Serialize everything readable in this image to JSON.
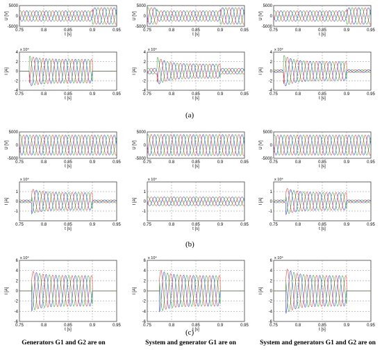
{
  "captions": [
    "(a)",
    "(b)",
    "(c)"
  ],
  "column_titles": [
    "Generators G1 and G2 are on",
    "System and generator G1 are on",
    "System and generators G1 and G2 are on"
  ],
  "series_colors": {
    "phase_a": "#2b35d9",
    "phase_b": "#d93b2b",
    "phase_c": "#2e9e3a"
  },
  "grid_color": "#888888",
  "chart_data": [
    {
      "id": "a-voltage-1",
      "type": "line",
      "row": 0,
      "col": 0,
      "kind": "voltage",
      "xlabel": "t [s]",
      "ylabel": "U [V]",
      "y_exponent": "",
      "xlim": [
        0.75,
        0.95
      ],
      "ylim": [
        -5000,
        5000
      ],
      "xticks": [
        "0.75",
        "0.8",
        "0.85",
        "0.9",
        "0.95"
      ],
      "yticks": [
        "5000",
        "0",
        "-5000"
      ],
      "ytick_values": [
        5000,
        0,
        -5000
      ],
      "segments": [
        {
          "t0": 0.75,
          "t1": 0.9,
          "amplitude": 2500
        },
        {
          "t0": 0.9,
          "t1": 0.95,
          "amplitude": 4000
        }
      ]
    },
    {
      "id": "a-current-1",
      "type": "line",
      "row": 1,
      "col": 0,
      "kind": "current",
      "xlabel": "t [s]",
      "ylabel": "I [A]",
      "y_exponent": "x 10⁴",
      "xlim": [
        0.75,
        0.95
      ],
      "ylim": [
        -4,
        4
      ],
      "xticks": [
        "0.75",
        "0.8",
        "0.85",
        "0.9",
        "0.95"
      ],
      "yticks": [
        "4",
        "2",
        "0",
        "-2",
        "-4"
      ],
      "ytick_values": [
        4,
        2,
        0,
        -2,
        -4
      ],
      "segments": [
        {
          "t0": 0.75,
          "t1": 0.77,
          "amplitude": 0
        },
        {
          "t0": 0.77,
          "t1": 0.9,
          "amplitude": 2.5,
          "peak": 3.2,
          "decay": 0.02
        },
        {
          "t0": 0.9,
          "t1": 0.95,
          "amplitude": 0
        }
      ]
    },
    {
      "id": "a-voltage-2",
      "type": "line",
      "row": 0,
      "col": 1,
      "kind": "voltage",
      "xlabel": "t [s]",
      "ylabel": "U [V]",
      "y_exponent": "",
      "xlim": [
        0.75,
        0.95
      ],
      "ylim": [
        -5000,
        5000
      ],
      "xticks": [
        "0.75",
        "0.8",
        "0.85",
        "0.9",
        "0.95"
      ],
      "yticks": [
        "5000",
        "0",
        "-5000"
      ],
      "ytick_values": [
        5000,
        0,
        -5000
      ],
      "segments": [
        {
          "t0": 0.75,
          "t1": 0.77,
          "amplitude": 4000
        },
        {
          "t0": 0.77,
          "t1": 0.9,
          "amplitude": 2500
        },
        {
          "t0": 0.9,
          "t1": 0.95,
          "amplitude": 4000
        }
      ]
    },
    {
      "id": "a-current-2",
      "type": "line",
      "row": 1,
      "col": 1,
      "kind": "current",
      "xlabel": "t [s]",
      "ylabel": "I [A]",
      "y_exponent": "x 10⁴",
      "xlim": [
        0.75,
        0.95
      ],
      "ylim": [
        -4,
        4
      ],
      "xticks": [
        "0.75",
        "0.8",
        "0.85",
        "0.9",
        "0.95"
      ],
      "yticks": [
        "4",
        "2",
        "0",
        "-2",
        "-4"
      ],
      "ytick_values": [
        4,
        2,
        0,
        -2,
        -4
      ],
      "segments": [
        {
          "t0": 0.75,
          "t1": 0.77,
          "amplitude": 0.6
        },
        {
          "t0": 0.77,
          "t1": 0.9,
          "amplitude": 1.5,
          "peak": 3.0,
          "decay": 0.02
        },
        {
          "t0": 0.9,
          "t1": 0.95,
          "amplitude": 0.6
        }
      ]
    },
    {
      "id": "a-voltage-3",
      "type": "line",
      "row": 0,
      "col": 2,
      "kind": "voltage",
      "xlabel": "t [s]",
      "ylabel": "U [V]",
      "y_exponent": "",
      "xlim": [
        0.75,
        0.95
      ],
      "ylim": [
        -5000,
        5000
      ],
      "xticks": [
        "0.75",
        "0.8",
        "0.85",
        "0.9",
        "0.95"
      ],
      "yticks": [
        "5000",
        "0",
        "-5000"
      ],
      "ytick_values": [
        5000,
        0,
        -5000
      ],
      "segments": [
        {
          "t0": 0.75,
          "t1": 0.9,
          "amplitude": 2500
        },
        {
          "t0": 0.9,
          "t1": 0.95,
          "amplitude": 4000
        }
      ]
    },
    {
      "id": "a-current-3",
      "type": "line",
      "row": 1,
      "col": 2,
      "kind": "current",
      "xlabel": "t [s]",
      "ylabel": "I [A]",
      "y_exponent": "x 10⁴",
      "xlim": [
        0.75,
        0.95
      ],
      "ylim": [
        -4,
        4
      ],
      "xticks": [
        "0.75",
        "0.8",
        "0.85",
        "0.9",
        "0.95"
      ],
      "yticks": [
        "4",
        "2",
        "0",
        "-2",
        "-4"
      ],
      "ytick_values": [
        4,
        2,
        0,
        -2,
        -4
      ],
      "segments": [
        {
          "t0": 0.75,
          "t1": 0.77,
          "amplitude": 0.3
        },
        {
          "t0": 0.77,
          "t1": 0.9,
          "amplitude": 2.0,
          "peak": 3.4,
          "decay": 0.02
        },
        {
          "t0": 0.9,
          "t1": 0.95,
          "amplitude": 0.3
        }
      ]
    },
    {
      "id": "b-voltage-1",
      "type": "line",
      "row": 2,
      "col": 0,
      "kind": "voltage",
      "xlabel": "t [s]",
      "ylabel": "U [V]",
      "y_exponent": "",
      "xlim": [
        0.75,
        0.95
      ],
      "ylim": [
        -5000,
        5000
      ],
      "xticks": [
        "0.75",
        "0.8",
        "0.85",
        "0.9",
        "0.95"
      ],
      "yticks": [
        "5000",
        "0",
        "-5000"
      ],
      "ytick_values": [
        5000,
        0,
        -5000
      ],
      "segments": [
        {
          "t0": 0.75,
          "t1": 0.95,
          "amplitude": 3800
        }
      ]
    },
    {
      "id": "b-current-1",
      "type": "line",
      "row": 3,
      "col": 0,
      "kind": "current",
      "xlabel": "t [s]",
      "ylabel": "I [A]",
      "y_exponent": "x 10⁴",
      "xlim": [
        0.75,
        0.95
      ],
      "ylim": [
        -2,
        2
      ],
      "xticks": [
        "0.75",
        "0.8",
        "0.85",
        "0.9",
        "0.95"
      ],
      "yticks": [
        "1",
        "0",
        "-1"
      ],
      "ytick_values": [
        1,
        0,
        -1
      ],
      "segments": [
        {
          "t0": 0.75,
          "t1": 0.775,
          "amplitude": 0.15
        },
        {
          "t0": 0.775,
          "t1": 0.9,
          "amplitude": 0.9,
          "peak": 1.3,
          "decay": 0.02
        },
        {
          "t0": 0.9,
          "t1": 0.95,
          "amplitude": 0.15
        }
      ]
    },
    {
      "id": "b-voltage-2",
      "type": "line",
      "row": 2,
      "col": 1,
      "kind": "voltage",
      "xlabel": "t [s]",
      "ylabel": "U [V]",
      "y_exponent": "",
      "xlim": [
        0.75,
        0.95
      ],
      "ylim": [
        -5000,
        5000
      ],
      "xticks": [
        "0.75",
        "0.8",
        "0.85",
        "0.9",
        "0.95"
      ],
      "yticks": [
        "5000",
        "0",
        "-5000"
      ],
      "ytick_values": [
        5000,
        0,
        -5000
      ],
      "segments": [
        {
          "t0": 0.75,
          "t1": 0.95,
          "amplitude": 4000
        }
      ]
    },
    {
      "id": "b-current-2",
      "type": "line",
      "row": 3,
      "col": 1,
      "kind": "current",
      "xlabel": "t [s]",
      "ylabel": "I [A]",
      "y_exponent": "x 10⁴",
      "xlim": [
        0.75,
        0.95
      ],
      "ylim": [
        -2,
        2
      ],
      "xticks": [
        "0.75",
        "0.8",
        "0.85",
        "0.9",
        "0.95"
      ],
      "yticks": [
        "1",
        "0",
        "-1"
      ],
      "ytick_values": [
        1,
        0,
        -1
      ],
      "segments": [
        {
          "t0": 0.75,
          "t1": 0.95,
          "amplitude": 0.45
        }
      ]
    },
    {
      "id": "b-voltage-3",
      "type": "line",
      "row": 2,
      "col": 2,
      "kind": "voltage",
      "xlabel": "t [s]",
      "ylabel": "U [V]",
      "y_exponent": "",
      "xlim": [
        0.75,
        0.95
      ],
      "ylim": [
        -5000,
        5000
      ],
      "xticks": [
        "0.75",
        "0.8",
        "0.85",
        "0.9",
        "0.95"
      ],
      "yticks": [
        "5000",
        "0",
        "-5000"
      ],
      "ytick_values": [
        5000,
        0,
        -5000
      ],
      "segments": [
        {
          "t0": 0.75,
          "t1": 0.95,
          "amplitude": 3800
        }
      ]
    },
    {
      "id": "b-current-3",
      "type": "line",
      "row": 3,
      "col": 2,
      "kind": "current",
      "xlabel": "t [s]",
      "ylabel": "I [A]",
      "y_exponent": "x 10⁴",
      "xlim": [
        0.75,
        0.95
      ],
      "ylim": [
        -2,
        2
      ],
      "xticks": [
        "0.75",
        "0.8",
        "0.85",
        "0.9",
        "0.95"
      ],
      "yticks": [
        "1",
        "0",
        "-1"
      ],
      "ytick_values": [
        1,
        0,
        -1
      ],
      "segments": [
        {
          "t0": 0.75,
          "t1": 0.775,
          "amplitude": 0.15
        },
        {
          "t0": 0.775,
          "t1": 0.9,
          "amplitude": 0.9,
          "peak": 1.4,
          "decay": 0.02
        },
        {
          "t0": 0.9,
          "t1": 0.95,
          "amplitude": 0.15
        }
      ]
    },
    {
      "id": "c-current-1",
      "type": "line",
      "row": 4,
      "col": 0,
      "kind": "current",
      "xlabel": "t [s]",
      "ylabel": "I [A]",
      "y_exponent": "x 10⁴",
      "xlim": [
        0.75,
        0.95
      ],
      "ylim": [
        -6,
        6
      ],
      "xticks": [
        "0.75",
        "0.8",
        "0.85",
        "0.9",
        "0.95"
      ],
      "yticks": [
        "6",
        "4",
        "2",
        "0",
        "-2",
        "-4",
        "-6"
      ],
      "ytick_values": [
        6,
        4,
        2,
        0,
        -2,
        -4,
        -6
      ],
      "segments": [
        {
          "t0": 0.75,
          "t1": 0.775,
          "amplitude": 0
        },
        {
          "t0": 0.775,
          "t1": 0.9,
          "amplitude": 3.0,
          "peak": 4.0,
          "decay": 0.02
        },
        {
          "t0": 0.9,
          "t1": 0.95,
          "amplitude": 0
        }
      ]
    },
    {
      "id": "c-current-2",
      "type": "line",
      "row": 4,
      "col": 1,
      "kind": "current",
      "xlabel": "t [s]",
      "ylabel": "I [A]",
      "y_exponent": "x 10⁴",
      "xlim": [
        0.75,
        0.95
      ],
      "ylim": [
        -6,
        6
      ],
      "xticks": [
        "0.75",
        "0.8",
        "0.85",
        "0.9",
        "0.95"
      ],
      "yticks": [
        "6",
        "4",
        "2",
        "0",
        "-2",
        "-4",
        "-6"
      ],
      "ytick_values": [
        6,
        4,
        2,
        0,
        -2,
        -4,
        -6
      ],
      "segments": [
        {
          "t0": 0.75,
          "t1": 0.775,
          "amplitude": 0
        },
        {
          "t0": 0.775,
          "t1": 0.9,
          "amplitude": 3.0,
          "peak": 4.2,
          "decay": 0.02
        },
        {
          "t0": 0.9,
          "t1": 0.95,
          "amplitude": 0
        }
      ]
    },
    {
      "id": "c-current-3",
      "type": "line",
      "row": 4,
      "col": 2,
      "kind": "current",
      "xlabel": "t [s]",
      "ylabel": "I [A]",
      "y_exponent": "x 10⁴",
      "xlim": [
        0.75,
        0.95
      ],
      "ylim": [
        -6,
        6
      ],
      "xticks": [
        "0.75",
        "0.8",
        "0.85",
        "0.9",
        "0.95"
      ],
      "yticks": [
        "6",
        "4",
        "2",
        "0",
        "-2",
        "-4",
        "-6"
      ],
      "ytick_values": [
        6,
        4,
        2,
        0,
        -2,
        -4,
        -6
      ],
      "segments": [
        {
          "t0": 0.75,
          "t1": 0.775,
          "amplitude": 0
        },
        {
          "t0": 0.775,
          "t1": 0.9,
          "amplitude": 3.0,
          "peak": 4.5,
          "decay": 0.02
        },
        {
          "t0": 0.9,
          "t1": 0.95,
          "amplitude": 0
        }
      ]
    }
  ]
}
